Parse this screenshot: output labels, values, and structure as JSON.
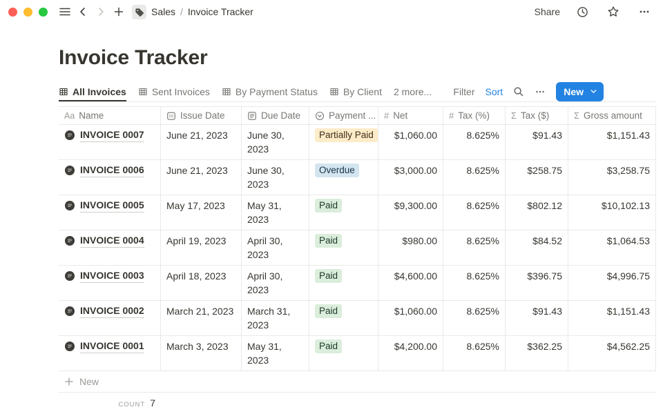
{
  "topbar": {
    "window_controls": [
      "close",
      "minimize",
      "maximize"
    ],
    "nav_icons": [
      "menu-icon",
      "chevron-left-icon",
      "chevron-right-icon",
      "plus-icon"
    ],
    "page_icon": "tag-icon",
    "breadcrumb": {
      "section": "Sales",
      "separator": "/",
      "page": "Invoice Tracker"
    },
    "share_label": "Share",
    "right_icons": [
      "clock-icon",
      "star-icon",
      "ellipsis-icon"
    ]
  },
  "page": {
    "title": "Invoice Tracker"
  },
  "view_bar": {
    "tabs": [
      {
        "label": "All Invoices",
        "active": true
      },
      {
        "label": "Sent Invoices",
        "active": false
      },
      {
        "label": "By Payment Status",
        "active": false
      },
      {
        "label": "By Client",
        "active": false
      }
    ],
    "more_views_label": "2 more...",
    "filter_label": "Filter",
    "sort_label": "Sort",
    "new_button_label": "New"
  },
  "table": {
    "columns": [
      {
        "key": "name",
        "label": "Name",
        "icon": "text-property-icon",
        "align": "left"
      },
      {
        "key": "issue_date",
        "label": "Issue Date",
        "icon": "calendar-icon",
        "align": "left"
      },
      {
        "key": "due_date",
        "label": "Due Date",
        "icon": "date-icon",
        "align": "left"
      },
      {
        "key": "status",
        "label": "Payment ...",
        "icon": "select-icon",
        "align": "left"
      },
      {
        "key": "net",
        "label": "Net",
        "icon": "number-icon",
        "align": "right"
      },
      {
        "key": "tax_pct",
        "label": "Tax (%)",
        "icon": "number-icon",
        "align": "right"
      },
      {
        "key": "tax_usd",
        "label": "Tax ($)",
        "icon": "formula-icon",
        "align": "right"
      },
      {
        "key": "gross",
        "label": "Gross amount",
        "icon": "formula-icon",
        "align": "right"
      }
    ],
    "rows": [
      {
        "name": "INVOICE 0007",
        "issue_date": "June 21, 2023",
        "due_date": "June 30, 2023",
        "status": "Partially Paid",
        "net": "$1,060.00",
        "tax_pct": "8.625%",
        "tax_usd": "$91.43",
        "gross": "$1,151.43"
      },
      {
        "name": "INVOICE 0006",
        "issue_date": "June 21, 2023",
        "due_date": "June 30, 2023",
        "status": "Overdue",
        "net": "$3,000.00",
        "tax_pct": "8.625%",
        "tax_usd": "$258.75",
        "gross": "$3,258.75"
      },
      {
        "name": "INVOICE 0005",
        "issue_date": "May 17, 2023",
        "due_date": "May 31, 2023",
        "status": "Paid",
        "net": "$9,300.00",
        "tax_pct": "8.625%",
        "tax_usd": "$802.12",
        "gross": "$10,102.13"
      },
      {
        "name": "INVOICE 0004",
        "issue_date": "April 19, 2023",
        "due_date": "April 30, 2023",
        "status": "Paid",
        "net": "$980.00",
        "tax_pct": "8.625%",
        "tax_usd": "$84.52",
        "gross": "$1,064.53"
      },
      {
        "name": "INVOICE 0003",
        "issue_date": "April 18, 2023",
        "due_date": "April 30, 2023",
        "status": "Paid",
        "net": "$4,600.00",
        "tax_pct": "8.625%",
        "tax_usd": "$396.75",
        "gross": "$4,996.75"
      },
      {
        "name": "INVOICE 0002",
        "issue_date": "March 21, 2023",
        "due_date": "March 31, 2023",
        "status": "Paid",
        "net": "$1,060.00",
        "tax_pct": "8.625%",
        "tax_usd": "$91.43",
        "gross": "$1,151.43"
      },
      {
        "name": "INVOICE 0001",
        "issue_date": "March 3, 2023",
        "due_date": "May 31, 2023",
        "status": "Paid",
        "net": "$4,200.00",
        "tax_pct": "8.625%",
        "tax_usd": "$362.25",
        "gross": "$4,562.25"
      }
    ],
    "new_row_label": "New",
    "count": {
      "label": "COUNT",
      "value": "7"
    }
  },
  "status_colors": {
    "Partially Paid": {
      "bg": "#fdecc8",
      "text": "#402c1b"
    },
    "Overdue": {
      "bg": "#d3e5ef",
      "text": "#183347"
    },
    "Paid": {
      "bg": "#dbeddb",
      "text": "#1c3829"
    }
  },
  "colors": {
    "accent_blue": "#2383e2",
    "traffic_red": "#ff5f57",
    "traffic_yellow": "#febc2e",
    "traffic_green": "#28c840",
    "border": "#e9e9e7",
    "secondary_text": "#787774"
  }
}
